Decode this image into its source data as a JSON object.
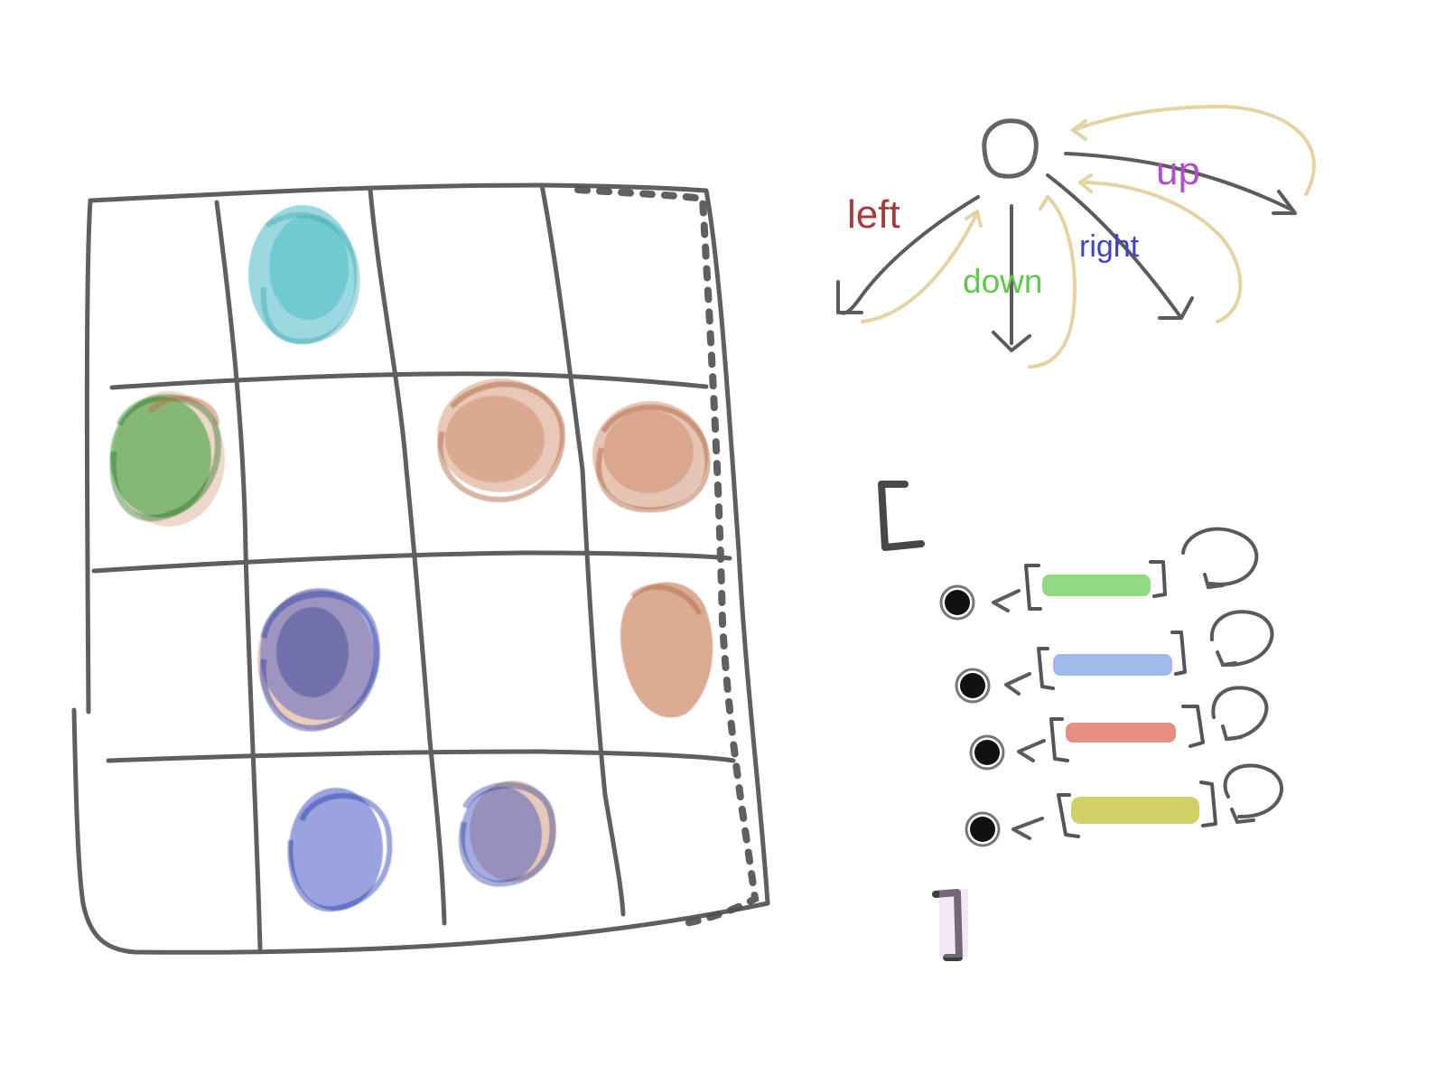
{
  "direction_labels": {
    "left": "left",
    "down": "down",
    "right": "right",
    "up": "up"
  },
  "colors": {
    "left": "#a73b3b",
    "down": "#5fc84d",
    "right": "#3c43c7",
    "up": "#b34dd1",
    "cyan": "#3db6c1",
    "green": "#2f9c2f",
    "orange": "#c26f45",
    "blue": "#3548c0",
    "queue_green": "#7dd46b",
    "queue_blue": "#8eaee8",
    "queue_red": "#e07c6d",
    "queue_yellow": "#c8c84b"
  },
  "grid": {
    "rows": 4,
    "cols": 4,
    "cells": [
      [
        "",
        "cyan",
        "",
        ""
      ],
      [
        "green+orange",
        "",
        "orange",
        "orange"
      ],
      [
        "",
        "blue+orange",
        "",
        "orange"
      ],
      [
        "",
        "blue",
        "blue+orange",
        ""
      ]
    ]
  },
  "queue_rows": [
    {
      "color_key": "queue_green"
    },
    {
      "color_key": "queue_blue"
    },
    {
      "color_key": "queue_red"
    },
    {
      "color_key": "queue_yellow"
    }
  ]
}
